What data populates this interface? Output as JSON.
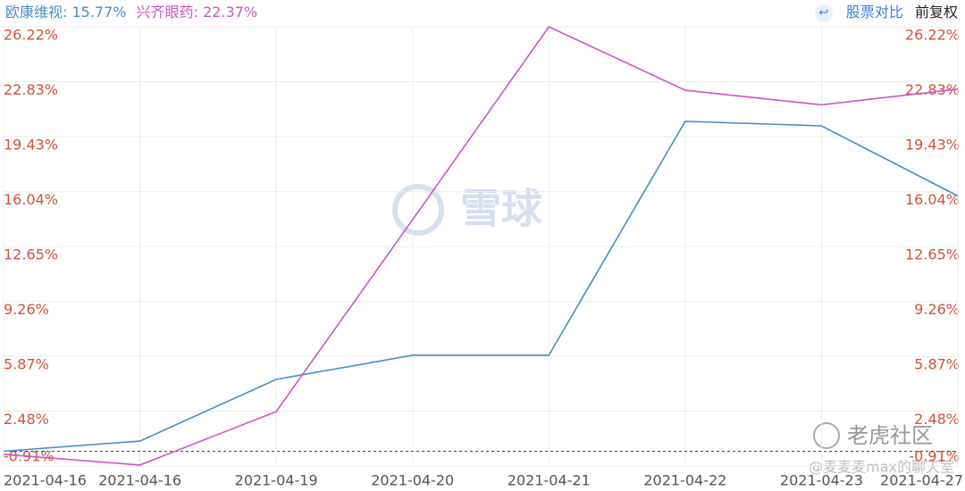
{
  "chart_data": {
    "type": "line",
    "legend_labels": [
      "欧康维视: 15.77%",
      "兴齐眼药: 22.37%"
    ],
    "toolbar": {
      "compare": "股票对比",
      "adjust": "前复权"
    },
    "watermarks": [
      "雪球",
      "老虎社区",
      "@麦麦麦max的聊天室"
    ],
    "categories": [
      "2021-04-16",
      "2021-04-16",
      "2021-04-19",
      "2021-04-20",
      "2021-04-21",
      "2021-04-22",
      "2021-04-23",
      "2021-04-27"
    ],
    "series": [
      {
        "name": "欧康维视",
        "color": "#4a8cc9",
        "values": [
          0,
          0.63,
          4.44,
          5.93,
          5.93,
          20.38,
          20.1,
          15.77
        ]
      },
      {
        "name": "兴齐眼药",
        "color": "#cc55c4",
        "values": [
          -0.19,
          -0.85,
          2.45,
          14.3,
          26.22,
          22.3,
          21.4,
          22.37
        ]
      }
    ],
    "ylim": [
      -0.91,
      26.22
    ],
    "yticks": [
      {
        "value": -0.91,
        "label": "-0.91%"
      },
      {
        "value": 2.48,
        "label": "2.48%"
      },
      {
        "value": 5.87,
        "label": "5.87%"
      },
      {
        "value": 9.26,
        "label": "9.26%"
      },
      {
        "value": 12.65,
        "label": "12.65%"
      },
      {
        "value": 16.04,
        "label": "16.04%"
      },
      {
        "value": 19.43,
        "label": "19.43%"
      },
      {
        "value": 22.83,
        "label": "22.83%"
      },
      {
        "value": 26.22,
        "label": "26.22%"
      }
    ],
    "baseline": 0,
    "grid": true
  }
}
